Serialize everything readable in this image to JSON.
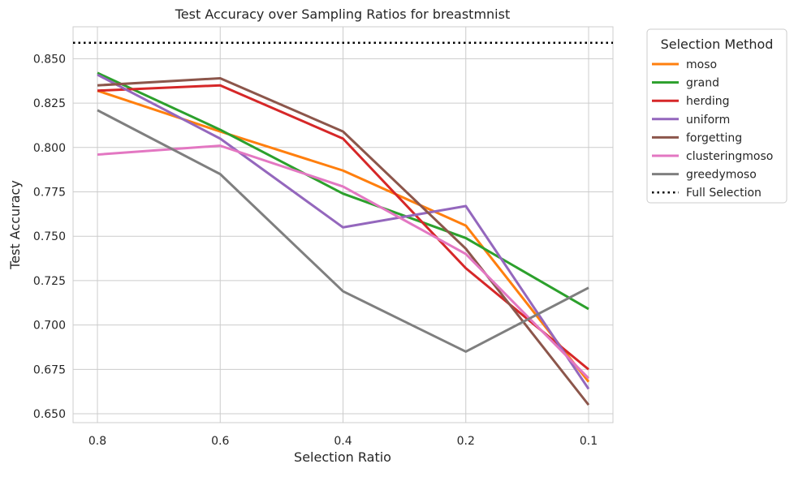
{
  "chart_data": {
    "type": "line",
    "title": "Test Accuracy over Sampling Ratios for breastmnist",
    "xlabel": "Selection Ratio",
    "ylabel": "Test Accuracy",
    "categories": [
      "0.8",
      "0.6",
      "0.4",
      "0.2",
      "0.1"
    ],
    "ylim": [
      0.645,
      0.868
    ],
    "yticks": [
      "0.650",
      "0.675",
      "0.700",
      "0.725",
      "0.750",
      "0.775",
      "0.800",
      "0.825",
      "0.850"
    ],
    "grid": true,
    "legend": {
      "title": "Selection Method",
      "placement": "outside-right"
    },
    "series": [
      {
        "name": "moso",
        "color": "#ff7f0e",
        "values": [
          0.832,
          0.809,
          0.787,
          0.756,
          0.668
        ]
      },
      {
        "name": "grand",
        "color": "#2ca02c",
        "values": [
          0.842,
          0.81,
          0.774,
          0.749,
          0.709
        ]
      },
      {
        "name": "herding",
        "color": "#d62728",
        "values": [
          0.832,
          0.835,
          0.805,
          0.732,
          0.675
        ]
      },
      {
        "name": "uniform",
        "color": "#9467bd",
        "values": [
          0.841,
          0.805,
          0.755,
          0.767,
          0.664
        ]
      },
      {
        "name": "forgetting",
        "color": "#8c564b",
        "values": [
          0.835,
          0.839,
          0.809,
          0.743,
          0.655
        ]
      },
      {
        "name": "clusteringmoso",
        "color": "#e377c2",
        "values": [
          0.796,
          0.801,
          0.778,
          0.74,
          0.67
        ]
      },
      {
        "name": "greedymoso",
        "color": "#7f7f7f",
        "values": [
          0.821,
          0.785,
          0.719,
          0.685,
          0.721
        ]
      }
    ],
    "reference_line": {
      "name": "Full Selection",
      "value": 0.859,
      "color": "#000000",
      "style": "dotted"
    }
  }
}
